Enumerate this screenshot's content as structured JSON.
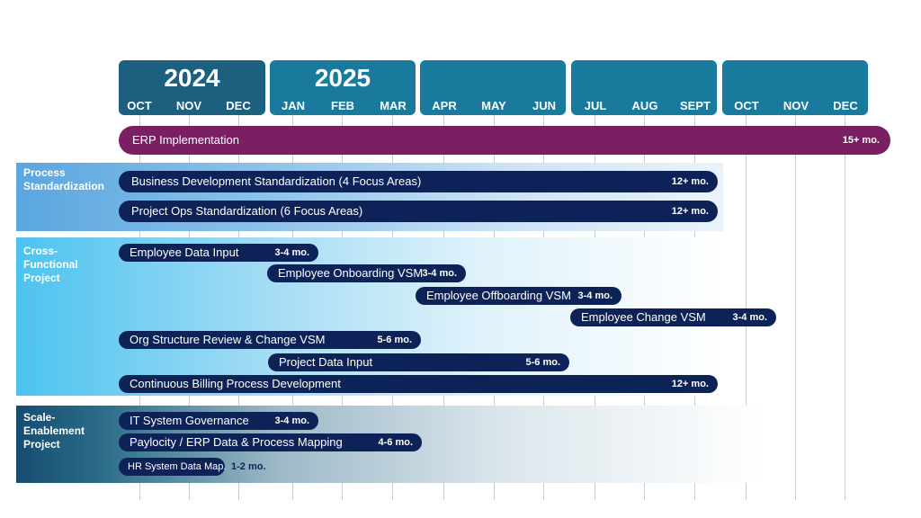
{
  "timeline": {
    "years": [
      "2024",
      "2025",
      "",
      "",
      ""
    ],
    "months": [
      "OCT",
      "NOV",
      "DEC",
      "JAN",
      "FEB",
      "MAR",
      "APR",
      "MAY",
      "JUN",
      "JUL",
      "AUG",
      "SEPT",
      "OCT",
      "NOV",
      "DEC"
    ]
  },
  "erp": {
    "label": "ERP Implementation",
    "duration": "15+ mo."
  },
  "sections": [
    {
      "title": "Process Standardization",
      "bars": [
        {
          "label": "Business Development Standardization (4 Focus Areas)",
          "duration": "12+ mo."
        },
        {
          "label": "Project Ops Standardization (6 Focus Areas)",
          "duration": "12+ mo."
        }
      ]
    },
    {
      "title": "Cross-Functional Project",
      "bars": [
        {
          "label": "Employee Data Input",
          "duration": "3-4 mo."
        },
        {
          "label": "Employee Onboarding VSM",
          "duration": "3-4 mo."
        },
        {
          "label": "Employee Offboarding VSM",
          "duration": "3-4 mo."
        },
        {
          "label": "Employee Change VSM",
          "duration": "3-4 mo."
        },
        {
          "label": "Org Structure Review & Change VSM",
          "duration": "5-6 mo."
        },
        {
          "label": "Project Data Input",
          "duration": "5-6 mo."
        },
        {
          "label": "Continuous Billing Process Development",
          "duration": "12+ mo."
        }
      ]
    },
    {
      "title": "Scale-Enablement Project",
      "bars": [
        {
          "label": "IT System Governance",
          "duration": "3-4 mo."
        },
        {
          "label": "Paylocity / ERP Data & Process Mapping",
          "duration": "4-6 mo."
        },
        {
          "label": "HR System Data Map.",
          "duration": "1-2 mo."
        }
      ]
    }
  ],
  "colors": {
    "year_2024": "#1d5f7f",
    "year_other": "#1a7a9e",
    "erp": "#7a1f63",
    "bar": "#0d2357"
  }
}
